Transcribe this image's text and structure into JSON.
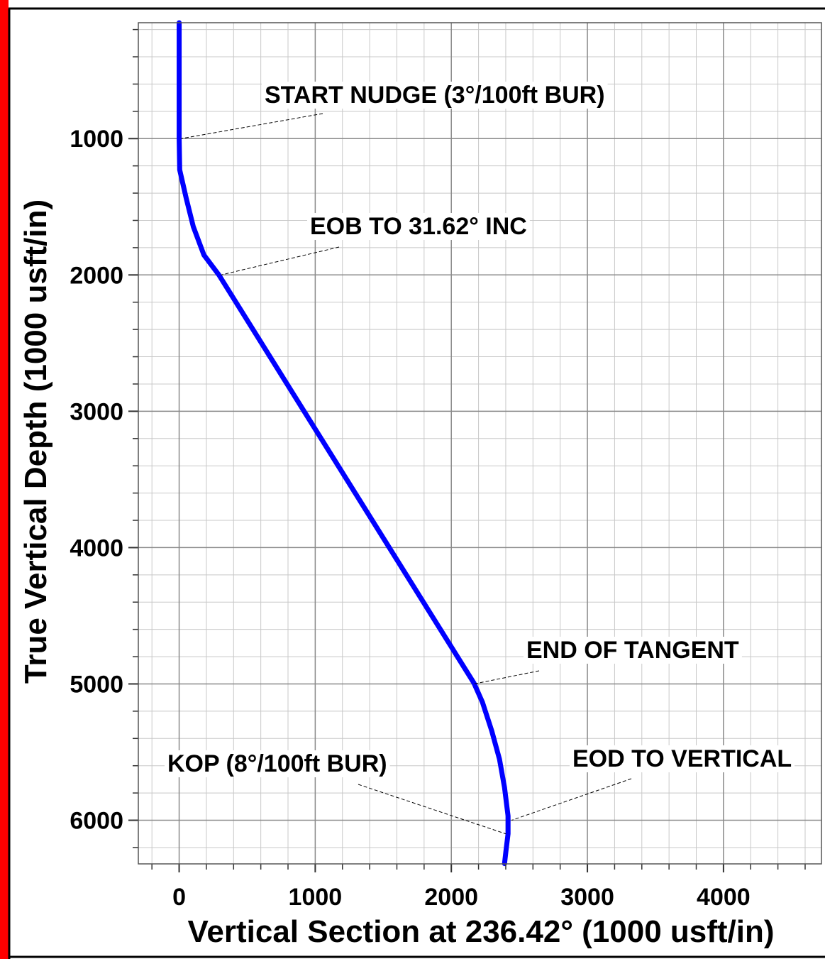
{
  "chart_data": {
    "type": "line",
    "x_label": "Vertical Section at 236.42° (1000 usft/in)",
    "y_label": "True Vertical Depth (1000 usft/in)",
    "xlim": [
      -300,
      4720
    ],
    "ylim": [
      150,
      6320
    ],
    "y_inverted": true,
    "xticks": [
      0,
      1000,
      2000,
      3000,
      4000
    ],
    "yticks": [
      1000,
      2000,
      3000,
      4000,
      5000,
      6000
    ],
    "minor_step": 200,
    "grid": true,
    "series": [
      {
        "color": "#0000ff",
        "x": [
          0,
          0,
          4,
          52,
          104,
          182,
          292,
          2167,
          2229,
          2297,
          2354,
          2391,
          2417,
          2417,
          2401,
          2391
        ],
        "values": [
          150,
          1000,
          1229,
          1438,
          1646,
          1854,
          2000,
          4995,
          5135,
          5344,
          5552,
          5760,
          5969,
          6099,
          6229,
          6318
        ]
      }
    ],
    "annotations": [
      {
        "text": "START NUDGE (3°/100ft BUR)",
        "x": 0,
        "y": 1000
      },
      {
        "text": "EOB TO 31.62° INC",
        "x": 292,
        "y": 2000
      },
      {
        "text": "END OF TANGENT",
        "x": 2167,
        "y": 5000
      },
      {
        "text": "EOD TO VERTICAL",
        "x": 2417,
        "y": 6000
      },
      {
        "text": "KOP (8°/100ft BUR)",
        "x": 2417,
        "y": 6100
      }
    ]
  }
}
